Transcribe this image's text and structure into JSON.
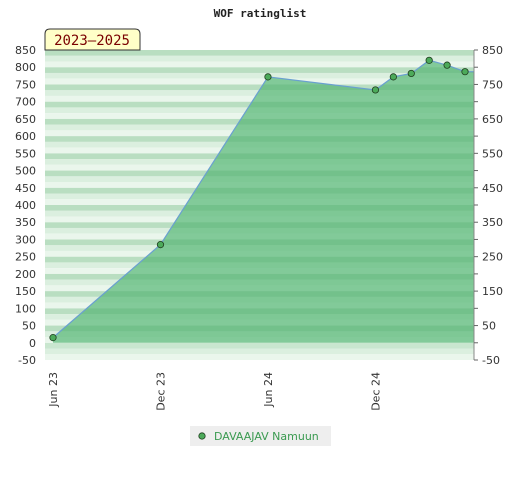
{
  "chart_data": {
    "type": "area",
    "title": "WOF ratinglist",
    "badge": "2023–2025",
    "xlabel": "",
    "ylabel": "",
    "x_tick_labels": [
      "Jun 23",
      "Dec 23",
      "Jun 24",
      "Dec 24"
    ],
    "x_ticks": [
      "2023-06",
      "2023-12",
      "2024-06",
      "2024-12"
    ],
    "left_y_ticks": [
      -50,
      0,
      50,
      100,
      150,
      200,
      250,
      300,
      350,
      400,
      450,
      500,
      550,
      600,
      650,
      700,
      750,
      800,
      850
    ],
    "right_y_ticks": [
      -50,
      50,
      150,
      250,
      350,
      450,
      550,
      650,
      750,
      850
    ],
    "ylim": [
      -50,
      850
    ],
    "xlim": [
      "2023-06",
      "2025-06"
    ],
    "grid": true,
    "legend_position": "bottom-center",
    "series": [
      {
        "name": "DAVAAJAV Namuun",
        "color": "#6aa0d0",
        "marker_color": "#4caa5a",
        "fill_color": "#5ab878",
        "x": [
          "2023-06",
          "2023-12",
          "2024-06",
          "2024-12",
          "2025-01",
          "2025-02",
          "2025-03",
          "2025-04",
          "2025-05"
        ],
        "y": [
          15,
          285,
          772,
          734,
          772,
          782,
          820,
          806,
          787
        ]
      }
    ]
  }
}
